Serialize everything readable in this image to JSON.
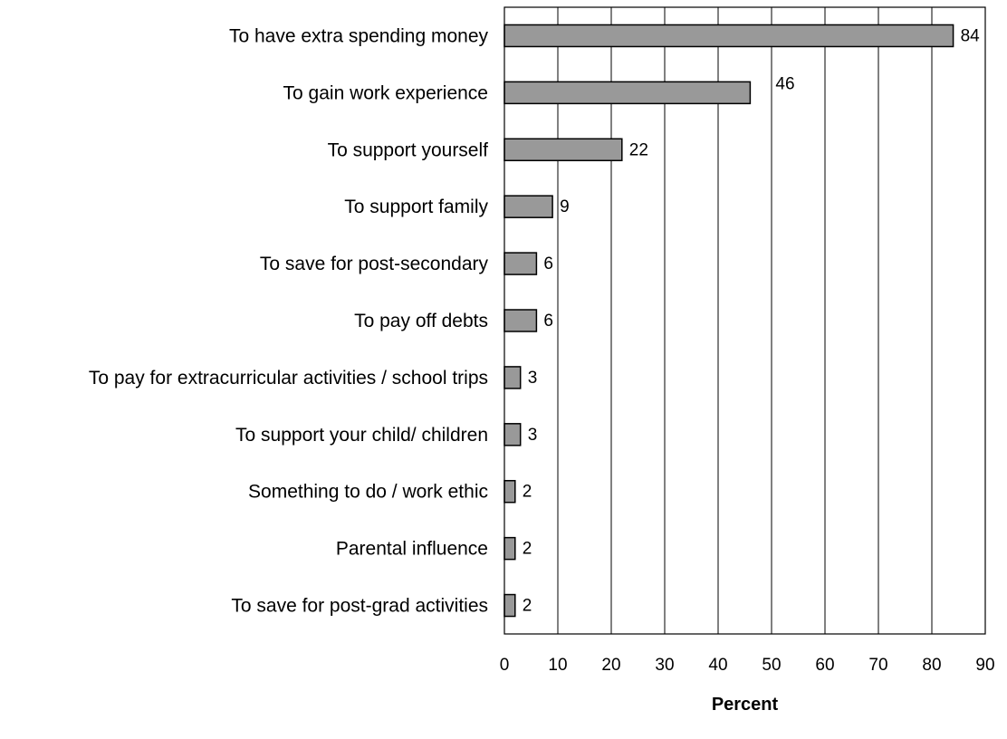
{
  "chart_data": {
    "type": "bar",
    "orientation": "horizontal",
    "categories": [
      "To have extra spending money",
      "To gain work experience",
      "To support yourself",
      "To support family",
      "To save for post-secondary",
      "To pay off debts",
      "To pay for extracurricular activities / school trips",
      "To support your child/ children",
      "Something to do / work ethic",
      "Parental influence",
      "To save for post-grad activities"
    ],
    "values": [
      84,
      46,
      22,
      9,
      6,
      6,
      3,
      3,
      2,
      2,
      2
    ],
    "data_labels": [
      "84",
      "46",
      "22",
      "9",
      "6",
      "6",
      "3",
      "3",
      "2",
      "2",
      "2"
    ],
    "xlabel": "Percent",
    "ylabel": "",
    "title": "",
    "xlim": [
      0,
      90
    ],
    "xticks": [
      0,
      10,
      20,
      30,
      40,
      50,
      60,
      70,
      80,
      90
    ],
    "grid": "vertical",
    "legend": "none",
    "bar_color": "#999999",
    "bar_edge_color": "#000000"
  }
}
